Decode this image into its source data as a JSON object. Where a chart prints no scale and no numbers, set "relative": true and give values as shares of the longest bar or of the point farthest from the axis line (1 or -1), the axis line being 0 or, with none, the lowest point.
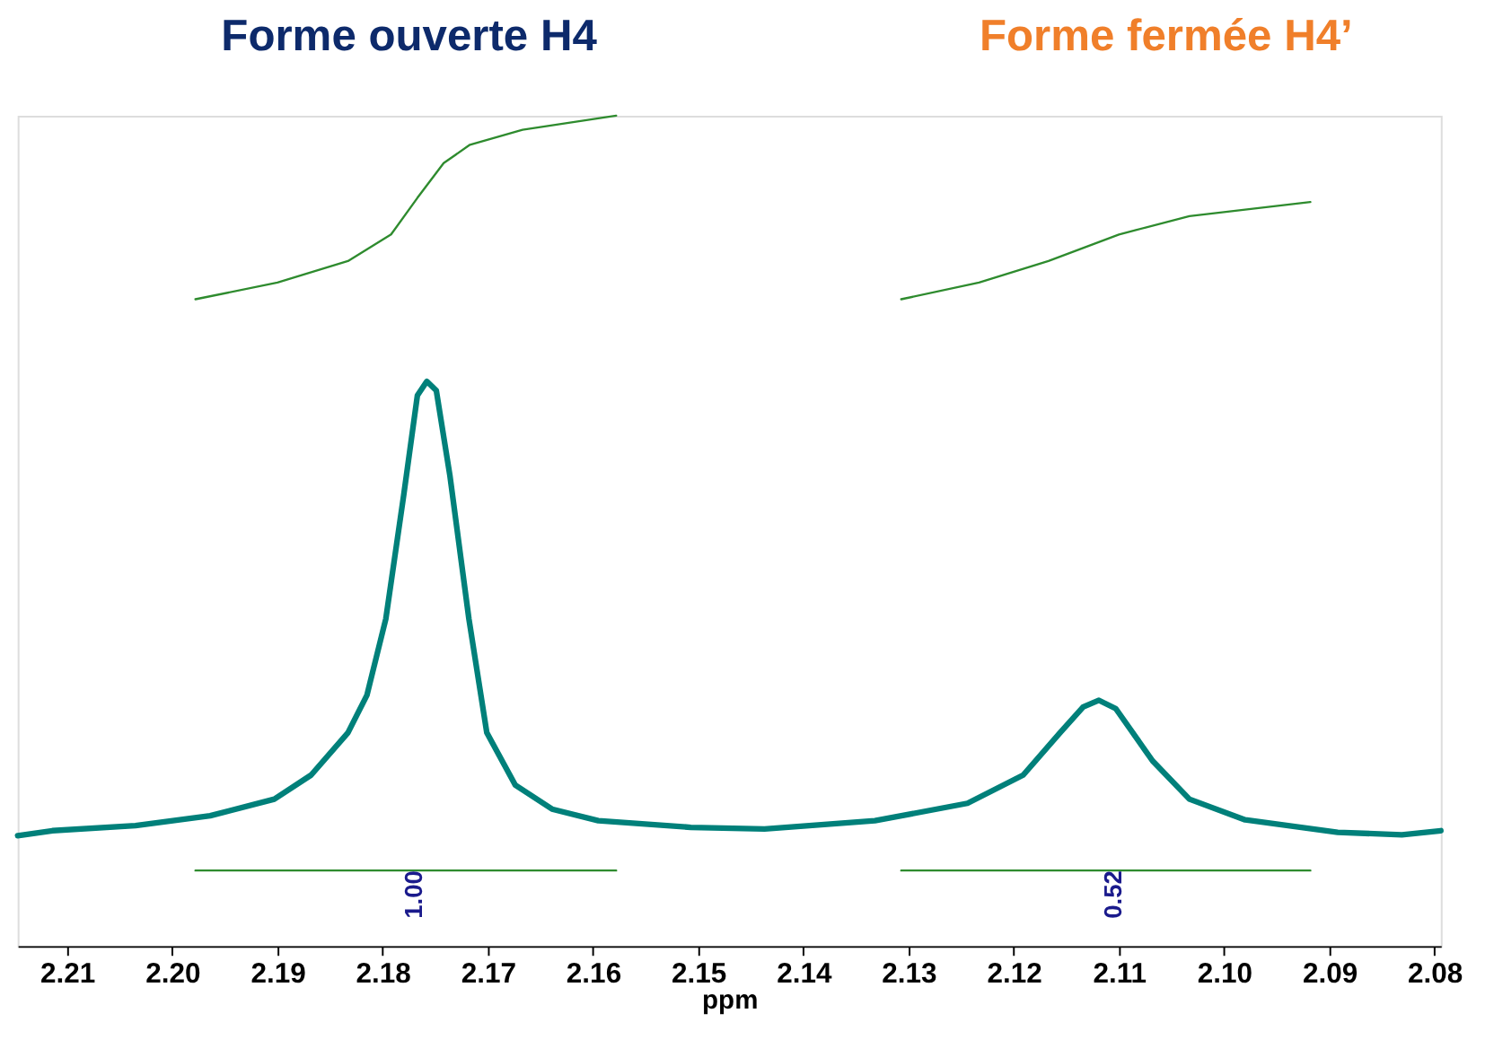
{
  "chart_data": {
    "type": "line",
    "relative": true,
    "xlabel": "ppm",
    "xlim": [
      2.2147,
      2.0794
    ],
    "xticks": [
      {
        "value": 2.21,
        "label": "2.21"
      },
      {
        "value": 2.2,
        "label": "2.20"
      },
      {
        "value": 2.19,
        "label": "2.19"
      },
      {
        "value": 2.18,
        "label": "2.18"
      },
      {
        "value": 2.17,
        "label": "2.17"
      },
      {
        "value": 2.16,
        "label": "2.16"
      },
      {
        "value": 2.15,
        "label": "2.15"
      },
      {
        "value": 2.14,
        "label": "2.14"
      },
      {
        "value": 2.13,
        "label": "2.13"
      },
      {
        "value": 2.12,
        "label": "2.12"
      },
      {
        "value": 2.11,
        "label": "2.11"
      },
      {
        "value": 2.1,
        "label": "2.10"
      },
      {
        "value": 2.09,
        "label": "2.09"
      },
      {
        "value": 2.08,
        "label": "2.08"
      }
    ],
    "grid": false,
    "marker": "none",
    "line_style": "solid",
    "series": [
      {
        "color": "#00807a",
        "x": [
          2.2147,
          2.2114,
          2.2035,
          2.1964,
          2.1903,
          2.1868,
          2.1833,
          2.1815,
          2.1797,
          2.178,
          2.1767,
          2.1758,
          2.1749,
          2.1736,
          2.1718,
          2.1701,
          2.1674,
          2.1639,
          2.1595,
          2.1507,
          2.1437,
          2.1332,
          2.1244,
          2.1191,
          2.1156,
          2.1134,
          2.1119,
          2.1103,
          2.1068,
          2.1033,
          2.098,
          2.0892,
          2.0831,
          2.0794
        ],
        "values": [
          0.133,
          0.139,
          0.145,
          0.157,
          0.177,
          0.206,
          0.257,
          0.302,
          0.394,
          0.543,
          0.663,
          0.68,
          0.669,
          0.566,
          0.394,
          0.257,
          0.194,
          0.165,
          0.151,
          0.143,
          0.141,
          0.151,
          0.172,
          0.206,
          0.257,
          0.288,
          0.296,
          0.286,
          0.223,
          0.177,
          0.152,
          0.137,
          0.134,
          0.139
        ]
      },
      {
        "color": "#2e8b2e",
        "x": [
          2.1978,
          2.19,
          2.1833,
          2.1792,
          2.1767,
          2.1742,
          2.1717,
          2.1667,
          2.1578
        ],
        "values": [
          0.779,
          0.799,
          0.825,
          0.857,
          0.901,
          0.943,
          0.965,
          0.983,
          1.0
        ]
      },
      {
        "color": "#2e8b2e",
        "x": [
          2.1307,
          2.1233,
          2.1167,
          2.11,
          2.1033,
          2.0918
        ],
        "values": [
          0.779,
          0.799,
          0.825,
          0.857,
          0.879,
          0.896
        ]
      },
      {
        "color": "#2e8b2e",
        "x": [
          2.1978,
          2.1578
        ],
        "values": [
          0.091,
          0.091
        ]
      },
      {
        "color": "#2e8b2e",
        "x": [
          2.1307,
          2.0918
        ],
        "values": [
          0.091,
          0.091
        ]
      }
    ],
    "annotations": [
      "Forme ouverte H4",
      "Forme fermée H4’",
      {
        "text": "1.00",
        "x": 2.1778,
        "y": 0.091
      },
      {
        "text": "0.52",
        "x": 2.1113,
        "y": 0.091
      }
    ]
  }
}
